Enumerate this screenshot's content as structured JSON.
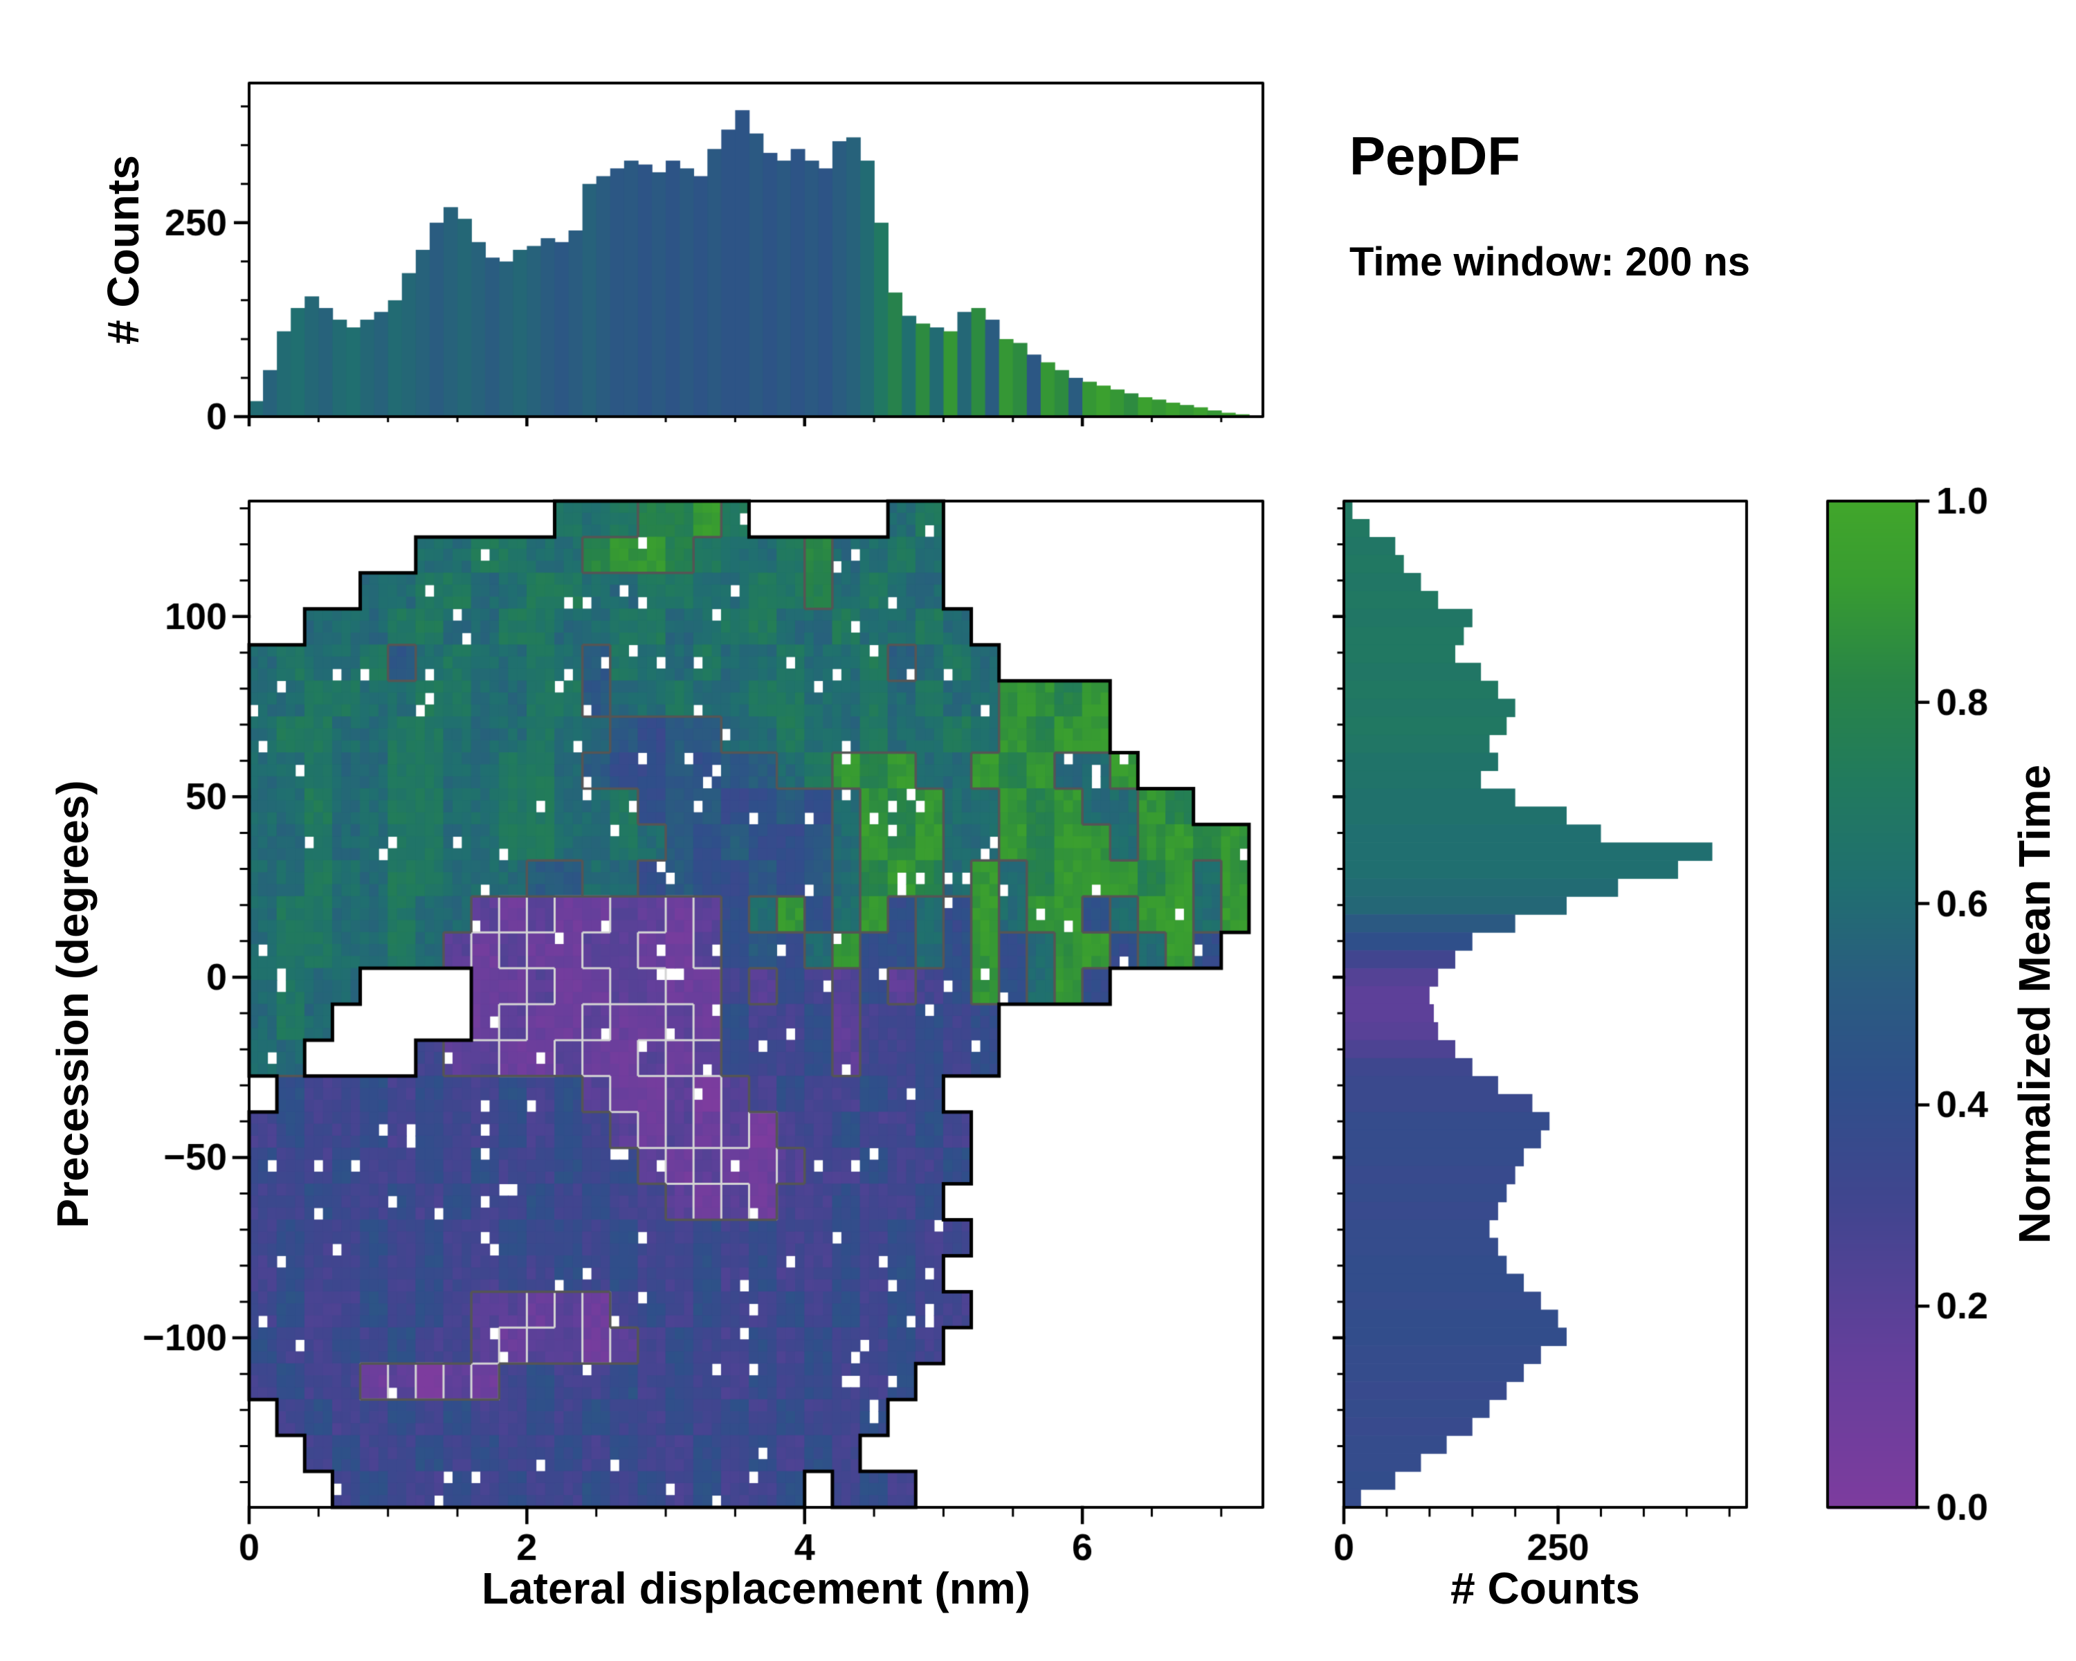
{
  "header": {
    "title": "PepDF",
    "subtitle": "Time window: 200 ns"
  },
  "colors": {
    "background": "#ffffff",
    "frame": "#000000",
    "outer_contour": "#000000",
    "inner_contour": "#555555",
    "light_contour": "#d4d4d4"
  },
  "colormap": {
    "stops": [
      {
        "t": 0.0,
        "c": "#7d3c9e"
      },
      {
        "t": 0.15,
        "c": "#643f9b"
      },
      {
        "t": 0.3,
        "c": "#41458f"
      },
      {
        "t": 0.42,
        "c": "#2f4f8a"
      },
      {
        "t": 0.52,
        "c": "#2a5c80"
      },
      {
        "t": 0.62,
        "c": "#206f70"
      },
      {
        "t": 0.72,
        "c": "#217a5e"
      },
      {
        "t": 0.82,
        "c": "#288447"
      },
      {
        "t": 0.92,
        "c": "#389c31"
      },
      {
        "t": 1.0,
        "c": "#41a62b"
      }
    ]
  },
  "chart_data": [
    {
      "id": "top_histogram",
      "type": "bar",
      "orientation": "vertical",
      "ylabel": "# Counts",
      "yticks": [
        0,
        250
      ],
      "ylim": [
        0,
        430
      ],
      "xlim": [
        0,
        7.3
      ],
      "xticks": [
        0,
        2,
        4,
        6
      ],
      "bin_start": 0,
      "bin_width": 0.1,
      "counts": [
        20,
        60,
        110,
        140,
        155,
        140,
        125,
        115,
        125,
        135,
        150,
        185,
        215,
        250,
        270,
        255,
        225,
        205,
        200,
        215,
        220,
        230,
        225,
        240,
        300,
        310,
        320,
        330,
        325,
        315,
        330,
        320,
        310,
        345,
        370,
        395,
        365,
        340,
        330,
        345,
        330,
        320,
        355,
        360,
        330,
        250,
        160,
        130,
        120,
        115,
        110,
        135,
        140,
        125,
        100,
        95,
        80,
        70,
        60,
        50,
        45,
        40,
        35,
        30,
        25,
        22,
        18,
        15,
        12,
        8,
        5,
        3
      ],
      "color_values": [
        0.6,
        0.55,
        0.6,
        0.62,
        0.58,
        0.55,
        0.6,
        0.62,
        0.58,
        0.55,
        0.6,
        0.58,
        0.55,
        0.52,
        0.55,
        0.58,
        0.55,
        0.52,
        0.55,
        0.58,
        0.55,
        0.52,
        0.48,
        0.52,
        0.55,
        0.52,
        0.48,
        0.5,
        0.46,
        0.5,
        0.46,
        0.5,
        0.46,
        0.5,
        0.46,
        0.46,
        0.5,
        0.46,
        0.5,
        0.46,
        0.5,
        0.46,
        0.52,
        0.55,
        0.6,
        0.7,
        0.8,
        0.62,
        0.85,
        0.6,
        0.9,
        0.58,
        0.85,
        0.52,
        0.9,
        0.85,
        0.48,
        0.9,
        0.85,
        0.52,
        0.9,
        0.95,
        0.9,
        0.85,
        0.95,
        0.9,
        0.95,
        0.9,
        0.95,
        0.9,
        0.95,
        0.95
      ]
    },
    {
      "id": "main_density_map",
      "type": "heatmap",
      "xlabel": "Lateral displacement (nm)",
      "ylabel": "Precession (degrees)",
      "xlim": [
        0,
        7.3
      ],
      "ylim": [
        -147,
        132
      ],
      "xticks": [
        0,
        2,
        4,
        6
      ],
      "yticks": [
        -100,
        -50,
        0,
        50,
        100
      ],
      "value_name": "Normalized Mean Time",
      "grid": {
        "x0": 0,
        "dx": 0.2,
        "ncols": 36,
        "y_top": 132,
        "dy": 9.964,
        "nrows": 28,
        "encoding": "digit = normalized mean time x10, '.' = empty",
        "rows": [
          "...........7678897.....67...........",
          "......6677668998766786676...........",
          "....667766776677667786766...........",
          "..666776677667766776676676..........",
          "676675676676576676676675676.........",
          "6677667766775667667766767669989.....",
          "6776677666766545566766766769899.....",
          "66766776677654454556798966989669....",
          "6676677667766745544546989669896698..",
          "667667766776676545445698966989969989",
          "667667766655664544545689869689998969",
          "677667662121122124694694649699469969",
          "67766762121122112454694464946994694.",
          "6766....11211221132432423494694.....",
          "676.....1211211214334233434.........",
          "66....322112112124334233434.........",
          ".433434334342112023433434...........",
          "34334343343432121203343343..........",
          "43343343433434212112334334..........",
          "3343343433434332121334334...........",
          "34334343343434334343343433..........",
          "3433434334343433434334343...........",
          "34334343221213434334343433..........",
          "4334343321221234334343343...........",
          "343312021343343433434334............",
          ".3433434334343343434334.............",
          "..34334343343433434343..............",
          "...34334343343434334.343............"
        ]
      }
    },
    {
      "id": "right_histogram",
      "type": "bar",
      "orientation": "horizontal",
      "xlabel": "# Counts",
      "xticks": [
        0,
        250
      ],
      "xlim": [
        0,
        470
      ],
      "ylim": [
        -147,
        132
      ],
      "bin_top": 132,
      "bin_height": 4.982,
      "counts": [
        10,
        30,
        60,
        70,
        90,
        110,
        150,
        140,
        130,
        160,
        180,
        200,
        190,
        170,
        180,
        160,
        200,
        260,
        300,
        430,
        390,
        320,
        260,
        200,
        150,
        130,
        110,
        100,
        105,
        110,
        130,
        150,
        180,
        220,
        240,
        230,
        210,
        200,
        190,
        180,
        170,
        180,
        190,
        210,
        230,
        250,
        260,
        230,
        210,
        190,
        170,
        150,
        120,
        90,
        60,
        20
      ],
      "color_values": [
        0.7,
        0.7,
        0.68,
        0.7,
        0.68,
        0.7,
        0.68,
        0.7,
        0.7,
        0.68,
        0.7,
        0.68,
        0.7,
        0.68,
        0.66,
        0.66,
        0.64,
        0.64,
        0.62,
        0.62,
        0.62,
        0.6,
        0.58,
        0.5,
        0.42,
        0.3,
        0.22,
        0.18,
        0.18,
        0.2,
        0.25,
        0.32,
        0.35,
        0.35,
        0.38,
        0.38,
        0.38,
        0.36,
        0.38,
        0.36,
        0.38,
        0.38,
        0.4,
        0.4,
        0.38,
        0.4,
        0.4,
        0.38,
        0.38,
        0.36,
        0.38,
        0.36,
        0.38,
        0.38,
        0.4,
        0.38
      ]
    },
    {
      "id": "colorbar",
      "label": "Normalized Mean Time",
      "tick_values": [
        0.0,
        0.2,
        0.4,
        0.6,
        0.8,
        1.0
      ],
      "range": [
        0,
        1
      ]
    }
  ]
}
